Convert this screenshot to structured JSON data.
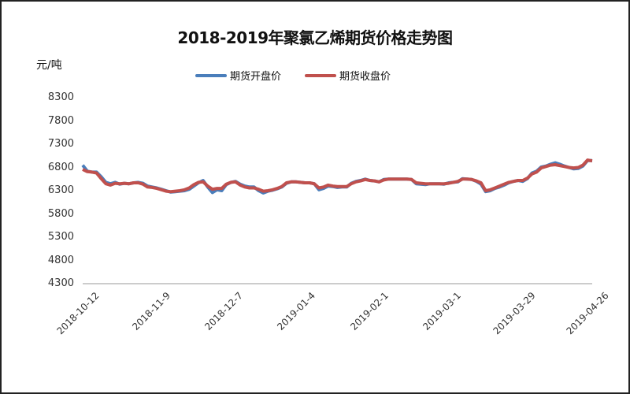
{
  "chart_data": {
    "type": "line",
    "title": "2018-2019年聚氯乙烯期货价格走势图",
    "ylabel": "元/吨",
    "xlabel": "",
    "ylim": [
      4300,
      8300
    ],
    "yticks": [
      8300,
      7800,
      7300,
      6800,
      6300,
      5800,
      5300,
      4800,
      4300
    ],
    "xticks": [
      "2018-10-12",
      "2018-11-9",
      "2018-12-7",
      "2019-01-4",
      "2019-02-1",
      "2019-03-1",
      "2019-03-29",
      "2019-04-26"
    ],
    "legend_position": "top",
    "grid": false,
    "series": [
      {
        "name": "期货开盘价",
        "color": "#4a7ebb",
        "values": [
          6850,
          6720,
          6700,
          6700,
          6600,
          6480,
          6450,
          6480,
          6440,
          6460,
          6450,
          6470,
          6480,
          6460,
          6400,
          6380,
          6360,
          6330,
          6300,
          6270,
          6280,
          6290,
          6300,
          6330,
          6400,
          6470,
          6520,
          6380,
          6260,
          6320,
          6300,
          6430,
          6480,
          6500,
          6440,
          6400,
          6380,
          6380,
          6300,
          6250,
          6290,
          6310,
          6340,
          6380,
          6460,
          6490,
          6490,
          6480,
          6470,
          6470,
          6450,
          6320,
          6350,
          6400,
          6390,
          6370,
          6380,
          6380,
          6460,
          6500,
          6520,
          6550,
          6520,
          6510,
          6490,
          6540,
          6550,
          6550,
          6550,
          6550,
          6550,
          6540,
          6450,
          6440,
          6430,
          6450,
          6450,
          6450,
          6440,
          6470,
          6480,
          6490,
          6560,
          6550,
          6540,
          6500,
          6440,
          6280,
          6300,
          6350,
          6380,
          6420,
          6470,
          6500,
          6520,
          6500,
          6560,
          6680,
          6720,
          6810,
          6830,
          6870,
          6900,
          6870,
          6830,
          6800,
          6770,
          6780,
          6830,
          6950,
          6950
        ]
      },
      {
        "name": "期货收盘价",
        "color": "#c0504d",
        "values": [
          6760,
          6710,
          6700,
          6680,
          6560,
          6450,
          6420,
          6460,
          6450,
          6460,
          6450,
          6470,
          6470,
          6440,
          6380,
          6370,
          6350,
          6320,
          6290,
          6280,
          6290,
          6300,
          6320,
          6360,
          6430,
          6480,
          6490,
          6400,
          6330,
          6350,
          6350,
          6440,
          6480,
          6490,
          6420,
          6380,
          6360,
          6360,
          6330,
          6290,
          6300,
          6320,
          6350,
          6390,
          6470,
          6490,
          6490,
          6480,
          6470,
          6470,
          6450,
          6360,
          6380,
          6420,
          6400,
          6390,
          6390,
          6390,
          6450,
          6490,
          6510,
          6540,
          6520,
          6510,
          6490,
          6530,
          6550,
          6550,
          6550,
          6550,
          6550,
          6540,
          6470,
          6460,
          6450,
          6450,
          6450,
          6450,
          6450,
          6460,
          6480,
          6500,
          6550,
          6550,
          6540,
          6510,
          6470,
          6300,
          6320,
          6360,
          6400,
          6440,
          6480,
          6500,
          6520,
          6520,
          6570,
          6660,
          6700,
          6790,
          6820,
          6850,
          6860,
          6840,
          6820,
          6800,
          6790,
          6800,
          6850,
          6960,
          6940
        ]
      }
    ]
  },
  "header": {
    "title": "2018-2019年聚氯乙烯期货价格走势图",
    "unit": "元/吨"
  },
  "legend": [
    {
      "label": "期货开盘价",
      "color": "#4a7ebb"
    },
    {
      "label": "期货收盘价",
      "color": "#c0504d"
    }
  ]
}
